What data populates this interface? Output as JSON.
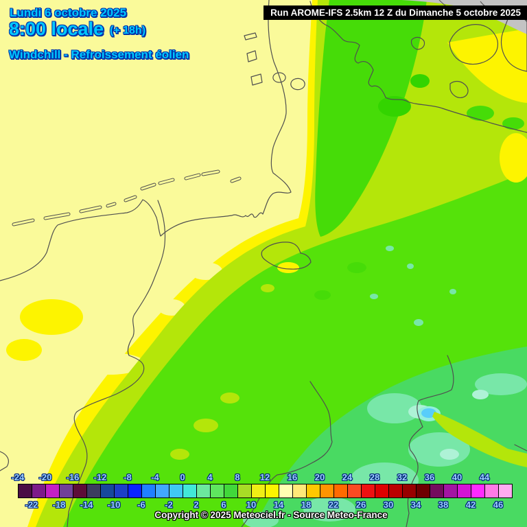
{
  "header": {
    "date": "Lundi 6 octobre 2025",
    "time": "8:00 locale",
    "run_offset": "(+ 18h)",
    "product": "Windchill - Refroissement éolien"
  },
  "run_banner": "Run AROME-IFS 2.5km 12 Z du Dimanche 5 octobre 2025",
  "legend": {
    "values_top_row": [
      "-24",
      "-20",
      "-16",
      "-12",
      "-8",
      "-4",
      "0",
      "4",
      "8",
      "12",
      "16",
      "20",
      "24",
      "28",
      "32",
      "36",
      "40",
      "44"
    ],
    "values_bottom_row": [
      "-22",
      "-18",
      "-14",
      "-10",
      "-6",
      "-2",
      "2",
      "6",
      "10",
      "14",
      "18",
      "22",
      "26",
      "30",
      "34",
      "38",
      "42",
      "46"
    ],
    "cell_colors": [
      "#4a0d45",
      "#7d1a8a",
      "#c41fc4",
      "#714098",
      "#5d0d38",
      "#3c3c60",
      "#17489c",
      "#1c3fc8",
      "#0a22ff",
      "#2080ff",
      "#42a8ff",
      "#40c8f4",
      "#42e8d8",
      "#6ce89e",
      "#5fe65f",
      "#41d83a",
      "#a8dc26",
      "#f0ee15",
      "#fdf400",
      "#ffffb2",
      "#ffe878",
      "#ffc800",
      "#ff9400",
      "#ff6a00",
      "#fb4a22",
      "#ee1111",
      "#dd0000",
      "#bb0000",
      "#980000",
      "#6e0000",
      "#740a5e",
      "#a315a3",
      "#d414d4",
      "#ff2aff",
      "#ff7ae6",
      "#ffabf0"
    ],
    "copyright": "Copyright © 2025 Meteociel.fr - Source Meteo-France"
  },
  "map_palette": {
    "mild_pale_yellow": "#fafa9a",
    "warm_yellow": "#fdf400",
    "yellow_green": "#b4e60a",
    "green": "#55e20a",
    "deep_green": "#46dc08",
    "cool_emerald_green": "#49da62",
    "mint": "#78e7a8",
    "pale_mint": "#aef2d6",
    "cold_spot_cyan": "#58cdfa",
    "no_data_gray": "#c3c3c3",
    "coast_border_line": "#4f4f4f",
    "header_text_cyan": "#00c8ff",
    "header_outline_navy": "#0033aa"
  }
}
